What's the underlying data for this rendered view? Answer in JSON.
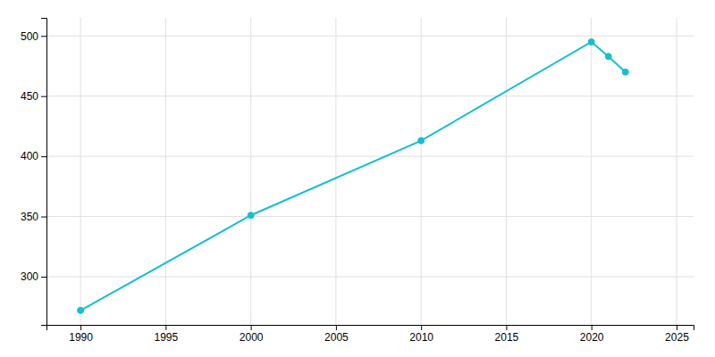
{
  "chart_data": {
    "type": "line",
    "x": [
      1990,
      2000,
      2010,
      2020,
      2021,
      2022
    ],
    "values": [
      272,
      351,
      413,
      495,
      483,
      470
    ],
    "color": "#17becf",
    "marker": "circle",
    "xlim": [
      1988,
      2026
    ],
    "ylim": [
      260,
      515
    ],
    "xticks": [
      1990,
      1995,
      2000,
      2005,
      2010,
      2015,
      2020,
      2025
    ],
    "yticks": [
      300,
      350,
      400,
      450,
      500
    ],
    "grid": true
  }
}
